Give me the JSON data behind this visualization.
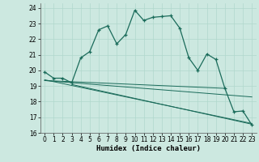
{
  "xlabel": "Humidex (Indice chaleur)",
  "bg_color": "#cce8e0",
  "grid_color": "#b0d8cc",
  "line_color": "#1a6b5a",
  "xlim": [
    -0.5,
    23.5
  ],
  "ylim": [
    16,
    24.3
  ],
  "xticks": [
    0,
    1,
    2,
    3,
    4,
    5,
    6,
    7,
    8,
    9,
    10,
    11,
    12,
    13,
    14,
    15,
    16,
    17,
    18,
    19,
    20,
    21,
    22,
    23
  ],
  "yticks": [
    16,
    17,
    18,
    19,
    20,
    21,
    22,
    23,
    24
  ],
  "main_x": [
    0,
    1,
    2,
    3,
    4,
    5,
    6,
    7,
    8,
    9,
    10,
    11,
    12,
    13,
    14,
    15,
    16,
    17,
    18,
    19,
    20,
    21,
    22,
    23
  ],
  "main_y": [
    19.9,
    19.5,
    19.5,
    19.2,
    20.8,
    21.2,
    22.6,
    22.85,
    21.7,
    22.3,
    23.85,
    23.2,
    23.4,
    23.45,
    23.5,
    22.7,
    20.8,
    20.0,
    21.05,
    20.7,
    18.85,
    17.35,
    17.4,
    16.5
  ],
  "line2_x": [
    0,
    20
  ],
  "line2_y": [
    19.35,
    18.85
  ],
  "line3_x": [
    0,
    23
  ],
  "line3_y": [
    19.35,
    18.3
  ],
  "line4_x": [
    0,
    23
  ],
  "line4_y": [
    19.4,
    16.6
  ],
  "line5_x": [
    3,
    23
  ],
  "line5_y": [
    19.1,
    16.55
  ]
}
